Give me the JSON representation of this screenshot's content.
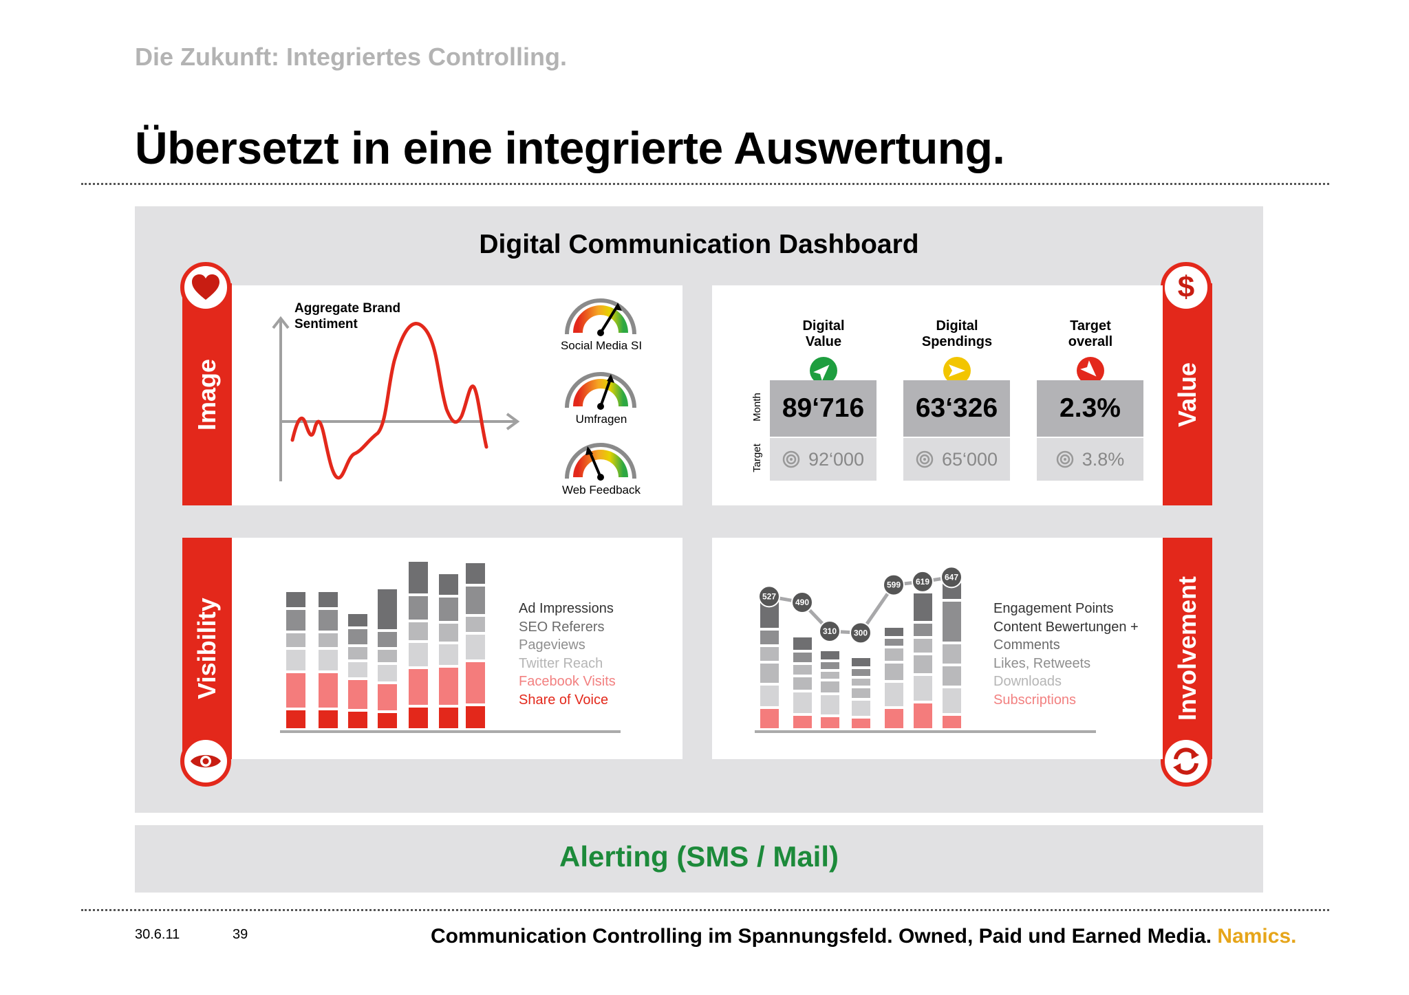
{
  "slide": {
    "subtitle": "Die Zukunft: Integriertes Controlling.",
    "title": "Übersetzt in eine integrierte Auswertung.",
    "dashboard_title": "Digital Communication Dashboard",
    "alerting": "Alerting (SMS / Mail)"
  },
  "sides": {
    "image": "Image",
    "value": "Value",
    "visibility": "Visibility",
    "involvement": "Involvement"
  },
  "icons": {
    "image": "heart-icon",
    "value": "dollar-icon",
    "visibility": "eye-icon",
    "involvement": "refresh-icon"
  },
  "sentiment": {
    "title": "Aggregate Brand Sentiment",
    "gauges": [
      {
        "label": "Social Media SI"
      },
      {
        "label": "Umfragen"
      },
      {
        "label": "Web Feedback"
      }
    ]
  },
  "kpis": {
    "row_month": "Month",
    "row_target": "Target",
    "items": [
      {
        "head1": "Digital",
        "head2": "Value",
        "value": "89‘716",
        "target": "92‘000",
        "arrow": "up-right",
        "color": "#1e9e3f"
      },
      {
        "head1": "Digital",
        "head2": "Spendings",
        "value": "63‘326",
        "target": "65‘000",
        "arrow": "right",
        "color": "#f2c500"
      },
      {
        "head1": "Target",
        "head2": "overall",
        "value": "2.3%",
        "target": "3.8%",
        "arrow": "down-right",
        "color": "#e3281b"
      }
    ]
  },
  "visibility_legend": [
    {
      "label": "Ad Impressions",
      "color": "#333333"
    },
    {
      "label": "SEO Referers",
      "color": "#6a6a6a"
    },
    {
      "label": "Pageviews",
      "color": "#8e8e8e"
    },
    {
      "label": "Twitter Reach",
      "color": "#b5b5b5"
    },
    {
      "label": "Facebook Visits",
      "color": "#f28080"
    },
    {
      "label": "Share of Voice",
      "color": "#e3281b"
    }
  ],
  "involvement_legend": [
    {
      "label": "Engagement Points",
      "color": "#333333"
    },
    {
      "label": "Content Bewertungen +",
      "color": "#333333"
    },
    {
      "label": "Comments",
      "color": "#6a6a6a"
    },
    {
      "label": "Likes, Retweets",
      "color": "#8e8e8e"
    },
    {
      "label": "Downloads",
      "color": "#b5b5b5"
    },
    {
      "label": "Subscriptions",
      "color": "#f28080"
    }
  ],
  "engagement_points": [
    527,
    490,
    310,
    300,
    599,
    619,
    647
  ],
  "footer": {
    "date": "30.6.11",
    "page": "39",
    "text": "Communication Controlling im Spannungsfeld. Owned, Paid und Earned Media.",
    "brand": "Namics."
  }
}
